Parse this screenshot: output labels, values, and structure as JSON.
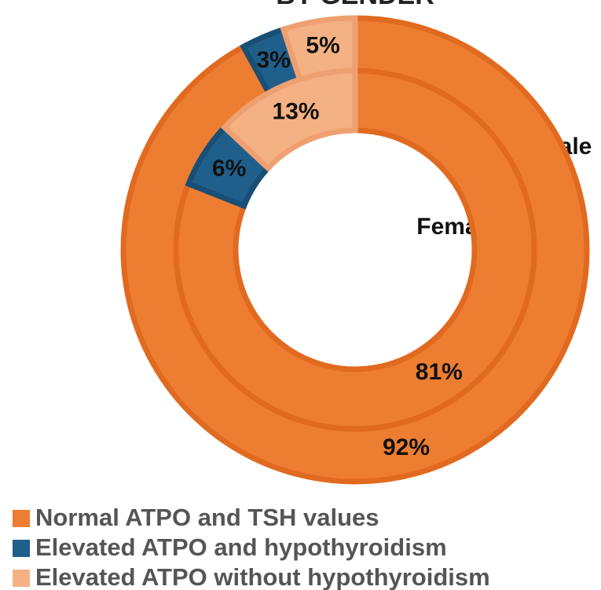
{
  "chart_data": {
    "type": "donut",
    "title": "BY GENDER",
    "categories": [
      "Normal ATPO and TSH values",
      "Elevated ATPO and hypothyroidism",
      "Elevated ATPO without hypothyroidism"
    ],
    "colors": [
      "#ED7D31",
      "#1F5F8B",
      "#F4B183"
    ],
    "series": [
      {
        "name": "Male",
        "values": [
          92,
          3,
          5
        ],
        "value_labels": [
          "92%",
          "3%",
          "5%"
        ]
      },
      {
        "name": "Female",
        "values": [
          81,
          6,
          13
        ],
        "value_labels": [
          "81%",
          "6%",
          "13%"
        ]
      }
    ]
  }
}
